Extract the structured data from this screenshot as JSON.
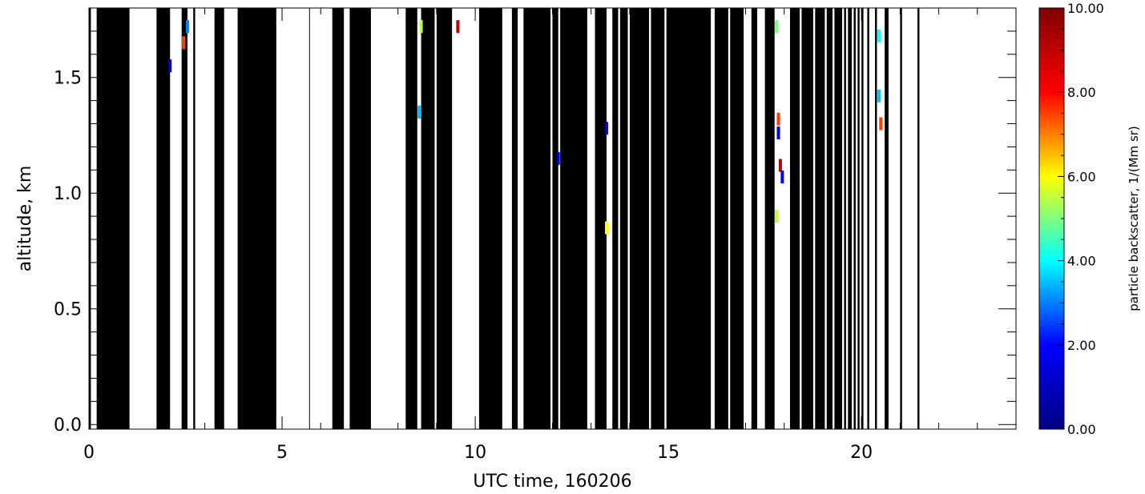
{
  "chart_data": {
    "type": "heatmap",
    "title": "",
    "xlabel": "UTC time, 160206",
    "ylabel": "altitude, km",
    "xlim": [
      0,
      24
    ],
    "ylim": [
      -0.02,
      1.8
    ],
    "x_ticks": [
      0,
      5,
      10,
      15,
      20
    ],
    "x_tick_labels": [
      "0",
      "5",
      "10",
      "15",
      "20"
    ],
    "y_ticks": [
      0.0,
      0.5,
      1.0,
      1.5
    ],
    "y_tick_labels": [
      "0.0",
      "0.5",
      "1.0",
      "1.5"
    ],
    "x_minor_step": 1,
    "y_minor_step": 0.1,
    "grid": false,
    "background_color": "#ffffff",
    "mask_color": "#000000",
    "colorbar": {
      "label": "particle backscatter, 1/(Mm sr)",
      "min": 0,
      "max": 10,
      "ticks": [
        0,
        2,
        4,
        6,
        8,
        10
      ],
      "tick_labels": [
        "0.00",
        "2.00",
        "4.00",
        "6.00",
        "8.00",
        "10.00"
      ],
      "colormap": "jet",
      "colors": [
        "#000080",
        "#0000ff",
        "#00ffff",
        "#ffff00",
        "#ff0000",
        "#800000"
      ]
    },
    "masked_time_intervals_utc": [
      [
        0.0,
        0.05
      ],
      [
        0.2,
        1.05
      ],
      [
        1.75,
        2.1
      ],
      [
        2.4,
        2.55
      ],
      [
        2.7,
        2.75
      ],
      [
        3.25,
        3.5
      ],
      [
        3.85,
        4.85
      ],
      [
        5.7,
        5.72
      ],
      [
        6.3,
        6.6
      ],
      [
        6.75,
        7.3
      ],
      [
        8.2,
        8.5
      ],
      [
        8.6,
        8.95
      ],
      [
        9.0,
        9.4
      ],
      [
        10.1,
        10.7
      ],
      [
        10.95,
        11.1
      ],
      [
        11.25,
        11.95
      ],
      [
        12.0,
        12.15
      ],
      [
        12.2,
        12.9
      ],
      [
        13.1,
        13.4
      ],
      [
        13.55,
        13.7
      ],
      [
        13.75,
        13.95
      ],
      [
        14.0,
        14.5
      ],
      [
        14.55,
        14.9
      ],
      [
        14.95,
        16.1
      ],
      [
        16.2,
        16.55
      ],
      [
        16.6,
        16.95
      ],
      [
        17.15,
        17.3
      ],
      [
        17.5,
        17.75
      ],
      [
        18.15,
        18.4
      ],
      [
        18.45,
        18.75
      ],
      [
        18.8,
        19.05
      ],
      [
        19.1,
        19.25
      ],
      [
        19.3,
        19.5
      ],
      [
        19.55,
        19.6
      ],
      [
        19.65,
        19.75
      ],
      [
        19.8,
        19.85
      ],
      [
        19.9,
        19.95
      ],
      [
        20.0,
        20.05
      ],
      [
        20.15,
        20.2
      ],
      [
        20.35,
        20.4
      ],
      [
        20.6,
        20.7
      ],
      [
        21.0,
        21.05
      ],
      [
        21.45,
        21.5
      ]
    ],
    "backscatter_points": [
      {
        "t": 2.55,
        "z": 1.72,
        "v": 3.0
      },
      {
        "t": 2.45,
        "z": 1.65,
        "v": 7.5
      },
      {
        "t": 2.1,
        "z": 1.55,
        "v": 1.0
      },
      {
        "t": 8.6,
        "z": 1.72,
        "v": 5.5
      },
      {
        "t": 8.55,
        "z": 1.35,
        "v": 3.5
      },
      {
        "t": 9.55,
        "z": 1.72,
        "v": 9.0
      },
      {
        "t": 12.15,
        "z": 1.15,
        "v": 1.5
      },
      {
        "t": 13.4,
        "z": 1.28,
        "v": 1.5
      },
      {
        "t": 13.4,
        "z": 0.85,
        "v": 6.0
      },
      {
        "t": 17.8,
        "z": 1.72,
        "v": 5.0
      },
      {
        "t": 17.85,
        "z": 1.32,
        "v": 7.5
      },
      {
        "t": 17.85,
        "z": 1.26,
        "v": 1.5
      },
      {
        "t": 17.9,
        "z": 1.12,
        "v": 9.0
      },
      {
        "t": 17.95,
        "z": 1.07,
        "v": 2.0
      },
      {
        "t": 17.8,
        "z": 0.9,
        "v": 5.5
      },
      {
        "t": 20.45,
        "z": 1.68,
        "v": 4.0
      },
      {
        "t": 20.45,
        "z": 1.42,
        "v": 3.5
      },
      {
        "t": 20.5,
        "z": 1.3,
        "v": 7.5
      }
    ]
  }
}
